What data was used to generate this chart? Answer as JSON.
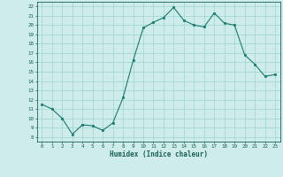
{
  "x": [
    0,
    1,
    2,
    3,
    4,
    5,
    6,
    7,
    8,
    9,
    10,
    11,
    12,
    13,
    14,
    15,
    16,
    17,
    18,
    19,
    20,
    21,
    22,
    23
  ],
  "y": [
    11.5,
    11.0,
    10.0,
    8.3,
    9.3,
    9.2,
    8.7,
    9.5,
    12.2,
    16.2,
    19.7,
    20.3,
    20.8,
    21.9,
    20.5,
    20.0,
    19.8,
    21.3,
    20.2,
    20.0,
    16.8,
    15.8,
    14.5,
    14.7
  ],
  "xlabel": "Humidex (Indice chaleur)",
  "xlim": [
    -0.5,
    23.5
  ],
  "ylim": [
    7.5,
    22.5
  ],
  "yticks": [
    8,
    9,
    10,
    11,
    12,
    13,
    14,
    15,
    16,
    17,
    18,
    19,
    20,
    21,
    22
  ],
  "xticks": [
    0,
    1,
    2,
    3,
    4,
    5,
    6,
    7,
    8,
    9,
    10,
    11,
    12,
    13,
    14,
    15,
    16,
    17,
    18,
    19,
    20,
    21,
    22,
    23
  ],
  "line_color": "#1a7a6e",
  "marker_color": "#1a7a6e",
  "bg_color": "#ceecea",
  "grid_color": "#9dd4ce",
  "label_color": "#1a5f56",
  "tick_color": "#1a5f56",
  "figsize": [
    3.2,
    2.0
  ],
  "dpi": 100
}
